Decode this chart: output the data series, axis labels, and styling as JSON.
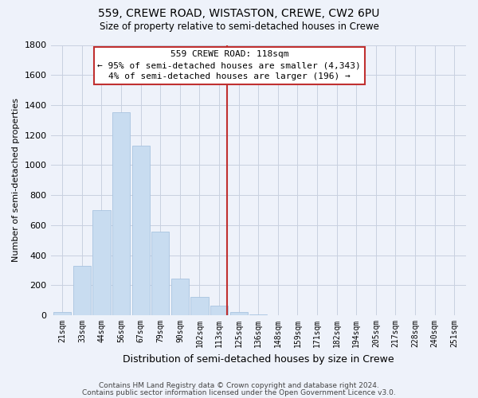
{
  "title": "559, CREWE ROAD, WISTASTON, CREWE, CW2 6PU",
  "subtitle": "Size of property relative to semi-detached houses in Crewe",
  "xlabel": "Distribution of semi-detached houses by size in Crewe",
  "ylabel": "Number of semi-detached properties",
  "bar_color": "#c8dcf0",
  "bar_edge_color": "#a8c4e0",
  "grid_color": "#c8d0e0",
  "categories": [
    "21sqm",
    "33sqm",
    "44sqm",
    "56sqm",
    "67sqm",
    "79sqm",
    "90sqm",
    "102sqm",
    "113sqm",
    "125sqm",
    "136sqm",
    "148sqm",
    "159sqm",
    "171sqm",
    "182sqm",
    "194sqm",
    "205sqm",
    "217sqm",
    "228sqm",
    "240sqm",
    "251sqm"
  ],
  "values": [
    20,
    330,
    700,
    1350,
    1130,
    555,
    245,
    120,
    65,
    20,
    5,
    2,
    0,
    0,
    0,
    0,
    0,
    0,
    0,
    0,
    0
  ],
  "highlight_color": "#c03030",
  "annotation_title": "559 CREWE ROAD: 118sqm",
  "annotation_line1": "← 95% of semi-detached houses are smaller (4,343)",
  "annotation_line2": "4% of semi-detached houses are larger (196) →",
  "ylim": [
    0,
    1800
  ],
  "yticks": [
    0,
    200,
    400,
    600,
    800,
    1000,
    1200,
    1400,
    1600,
    1800
  ],
  "footer_line1": "Contains HM Land Registry data © Crown copyright and database right 2024.",
  "footer_line2": "Contains public sector information licensed under the Open Government Licence v3.0.",
  "bg_color": "#eef2fa"
}
